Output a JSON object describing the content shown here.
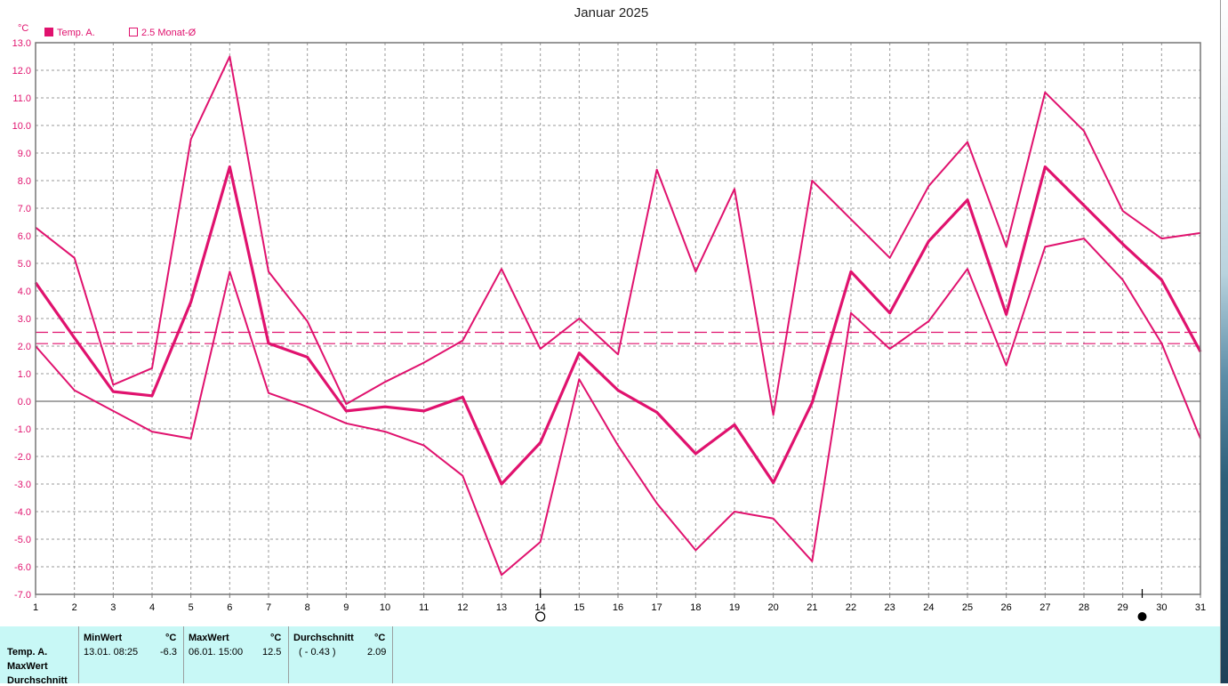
{
  "chart_data": {
    "type": "line",
    "title": "Januar 2025",
    "unit_label": "°C",
    "legend": [
      {
        "label": "Temp. A.",
        "swatch": "filled",
        "color": "#e0126e"
      },
      {
        "label": "2.5 Monat-Ø",
        "swatch": "hollow",
        "color": "#e0126e"
      }
    ],
    "x": [
      1,
      2,
      3,
      4,
      5,
      6,
      7,
      8,
      9,
      10,
      11,
      12,
      13,
      14,
      15,
      16,
      17,
      18,
      19,
      20,
      21,
      22,
      23,
      24,
      25,
      26,
      27,
      28,
      29,
      30,
      31
    ],
    "xlim": [
      1,
      31
    ],
    "ylim": [
      -7,
      13
    ],
    "yticks": [
      "13.0",
      "12.0",
      "11.0",
      "10.0",
      "9.0",
      "8.0",
      "7.0",
      "6.0",
      "5.0",
      "4.0",
      "3.0",
      "2.0",
      "1.0",
      "0.0",
      "-1.0",
      "-2.0",
      "-3.0",
      "-4.0",
      "-5.0",
      "-6.0",
      "-7.0"
    ],
    "grid": true,
    "series": [
      {
        "name": "Temp. A.",
        "role": "max",
        "color": "#e0126e",
        "values": [
          6.3,
          5.2,
          0.6,
          1.2,
          9.5,
          12.5,
          4.7,
          2.9,
          -0.1,
          0.7,
          1.4,
          2.2,
          4.8,
          1.9,
          3.0,
          1.7,
          8.4,
          4.7,
          7.7,
          -0.5,
          8.0,
          6.6,
          5.2,
          7.8,
          9.4,
          5.6,
          11.2,
          9.8,
          6.9,
          5.9,
          6.1
        ]
      },
      {
        "name": "Temp. A.",
        "role": "mean",
        "color": "#e0126e",
        "values": [
          4.3,
          2.3,
          0.35,
          0.2,
          3.6,
          8.5,
          2.1,
          1.6,
          -0.35,
          -0.2,
          -0.35,
          0.15,
          -3.0,
          -1.5,
          1.75,
          0.4,
          -0.4,
          -1.9,
          -0.85,
          -2.95,
          -0.05,
          4.7,
          3.2,
          5.8,
          7.3,
          3.15,
          8.5,
          7.1,
          5.7,
          4.4,
          1.8
        ]
      },
      {
        "name": "Temp. A.",
        "role": "min",
        "color": "#e0126e",
        "values": [
          2.0,
          0.4,
          -0.35,
          -1.1,
          -1.35,
          4.7,
          0.3,
          -0.2,
          -0.8,
          -1.1,
          -1.6,
          -2.7,
          -6.3,
          -5.1,
          0.8,
          -1.6,
          -3.7,
          -5.4,
          -4.0,
          -4.25,
          -5.8,
          3.2,
          1.9,
          2.9,
          4.8,
          1.3,
          5.6,
          5.9,
          4.4,
          2.1,
          -1.35
        ]
      }
    ],
    "reference_lines": [
      {
        "name": "2.5 Monat-Ø",
        "value": 2.5,
        "color": "#e0126e",
        "style": "dashed"
      },
      {
        "name": "Durchschnitt",
        "value": 2.09,
        "color": "#e0126e",
        "style": "dashed"
      }
    ],
    "moon_phases": [
      {
        "day": 14,
        "phase": "full-moon"
      },
      {
        "day": 29.5,
        "phase": "new-moon"
      }
    ]
  },
  "stats": {
    "row_labels": [
      "Temp. A.",
      "MaxWert",
      "Durchschnitt"
    ],
    "min": {
      "header": "MinWert",
      "unit": "°C",
      "datetime": "13.01.  08:25",
      "value": "-6.3"
    },
    "max": {
      "header": "MaxWert",
      "unit": "°C",
      "datetime": "06.01.  15:00",
      "value": "12.5"
    },
    "avg": {
      "header": "Durchschnitt",
      "unit": "°C",
      "note": "( - 0.43 )",
      "value": "2.09"
    }
  }
}
